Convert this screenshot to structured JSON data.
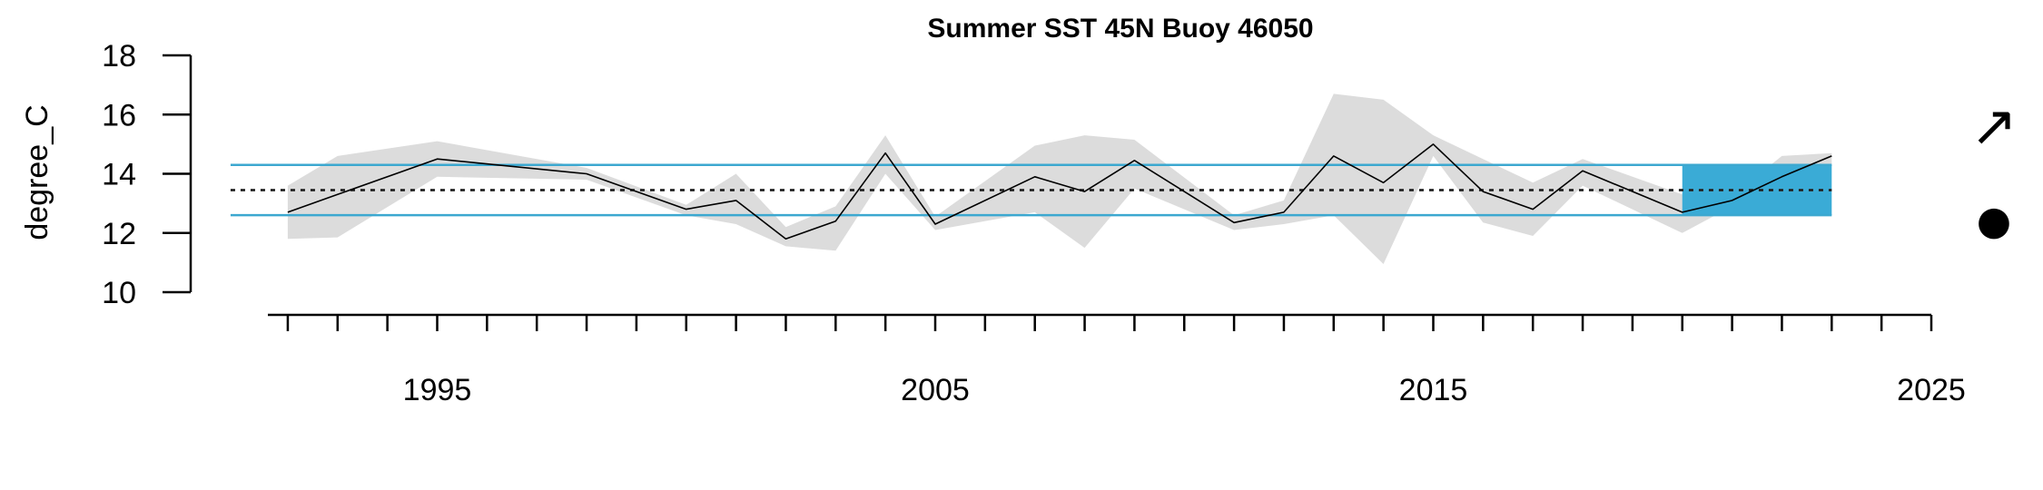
{
  "chart_data": {
    "type": "line",
    "title": "Summer SST 45N Buoy 46050",
    "xlabel": "",
    "ylabel": "degree_C",
    "ylim": [
      10,
      18
    ],
    "xlim": [
      1991.6,
      2025
    ],
    "y_ticks": [
      "10",
      "12",
      "14",
      "16",
      "18"
    ],
    "x_major_ticks": [
      "1995",
      "2005",
      "2015",
      "2025"
    ],
    "x_minor_tick_start": 1992,
    "x_minor_tick_end": 2025,
    "mean": 13.45,
    "sd_upper": 14.3,
    "sd_lower": 12.6,
    "recent_window": [
      2020,
      2023
    ],
    "trend_symbol": "↗",
    "mean_symbol": "●",
    "colors": {
      "series": "#000000",
      "band": "#dcdcdc",
      "sd_lines": "#3ca8d0",
      "recent_box": "#3aabd6",
      "mean_line": "#000000",
      "mean_line_gray": "#a8a8a8"
    },
    "series": [
      {
        "values": [
          {
            "x": 1992,
            "y": 12.7
          },
          {
            "x": 1993,
            "y": 13.3
          },
          {
            "x": 1995,
            "y": 14.5
          },
          {
            "x": 1998,
            "y": 14.0
          },
          {
            "x": 2000,
            "y": 12.8
          },
          {
            "x": 2001,
            "y": 13.1
          },
          {
            "x": 2002,
            "y": 11.8
          },
          {
            "x": 2003,
            "y": 12.4
          },
          {
            "x": 2004,
            "y": 14.7
          },
          {
            "x": 2005,
            "y": 12.3
          },
          {
            "x": 2007,
            "y": 13.9
          },
          {
            "x": 2008,
            "y": 13.4
          },
          {
            "x": 2009,
            "y": 14.45
          },
          {
            "x": 2011,
            "y": 12.35
          },
          {
            "x": 2012,
            "y": 12.7
          },
          {
            "x": 2013,
            "y": 14.6
          },
          {
            "x": 2014,
            "y": 13.7
          },
          {
            "x": 2015,
            "y": 15.0
          },
          {
            "x": 2016,
            "y": 13.4
          },
          {
            "x": 2017,
            "y": 12.8
          },
          {
            "x": 2018,
            "y": 14.1
          },
          {
            "x": 2020,
            "y": 12.7
          },
          {
            "x": 2021,
            "y": 13.1
          },
          {
            "x": 2022,
            "y": 13.9
          },
          {
            "x": 2023,
            "y": 14.6
          }
        ]
      }
    ],
    "uncertainty_band": [
      {
        "x": 1992,
        "lo": 11.8,
        "hi": 13.6
      },
      {
        "x": 1993,
        "lo": 11.85,
        "hi": 14.6
      },
      {
        "x": 1995,
        "lo": 13.9,
        "hi": 15.1
      },
      {
        "x": 1998,
        "lo": 13.8,
        "hi": 14.2
      },
      {
        "x": 2000,
        "lo": 12.6,
        "hi": 12.95
      },
      {
        "x": 2001,
        "lo": 12.3,
        "hi": 14.0
      },
      {
        "x": 2002,
        "lo": 11.55,
        "hi": 12.2
      },
      {
        "x": 2003,
        "lo": 11.4,
        "hi": 12.9
      },
      {
        "x": 2004,
        "lo": 14.0,
        "hi": 15.3
      },
      {
        "x": 2005,
        "lo": 12.1,
        "hi": 12.55
      },
      {
        "x": 2007,
        "lo": 12.7,
        "hi": 14.95
      },
      {
        "x": 2008,
        "lo": 11.5,
        "hi": 15.3
      },
      {
        "x": 2009,
        "lo": 13.5,
        "hi": 15.15
      },
      {
        "x": 2011,
        "lo": 12.1,
        "hi": 12.6
      },
      {
        "x": 2012,
        "lo": 12.3,
        "hi": 13.1
      },
      {
        "x": 2013,
        "lo": 12.6,
        "hi": 16.7
      },
      {
        "x": 2014,
        "lo": 10.95,
        "hi": 16.5
      },
      {
        "x": 2015,
        "lo": 14.6,
        "hi": 15.3
      },
      {
        "x": 2016,
        "lo": 12.35,
        "hi": 14.5
      },
      {
        "x": 2017,
        "lo": 11.9,
        "hi": 13.7
      },
      {
        "x": 2018,
        "lo": 13.6,
        "hi": 14.5
      },
      {
        "x": 2020,
        "lo": 12.0,
        "hi": 13.3
      },
      {
        "x": 2021,
        "lo": 12.9,
        "hi": 13.25
      },
      {
        "x": 2022,
        "lo": 13.2,
        "hi": 14.6
      },
      {
        "x": 2023,
        "lo": 14.3,
        "hi": 14.7
      }
    ]
  }
}
